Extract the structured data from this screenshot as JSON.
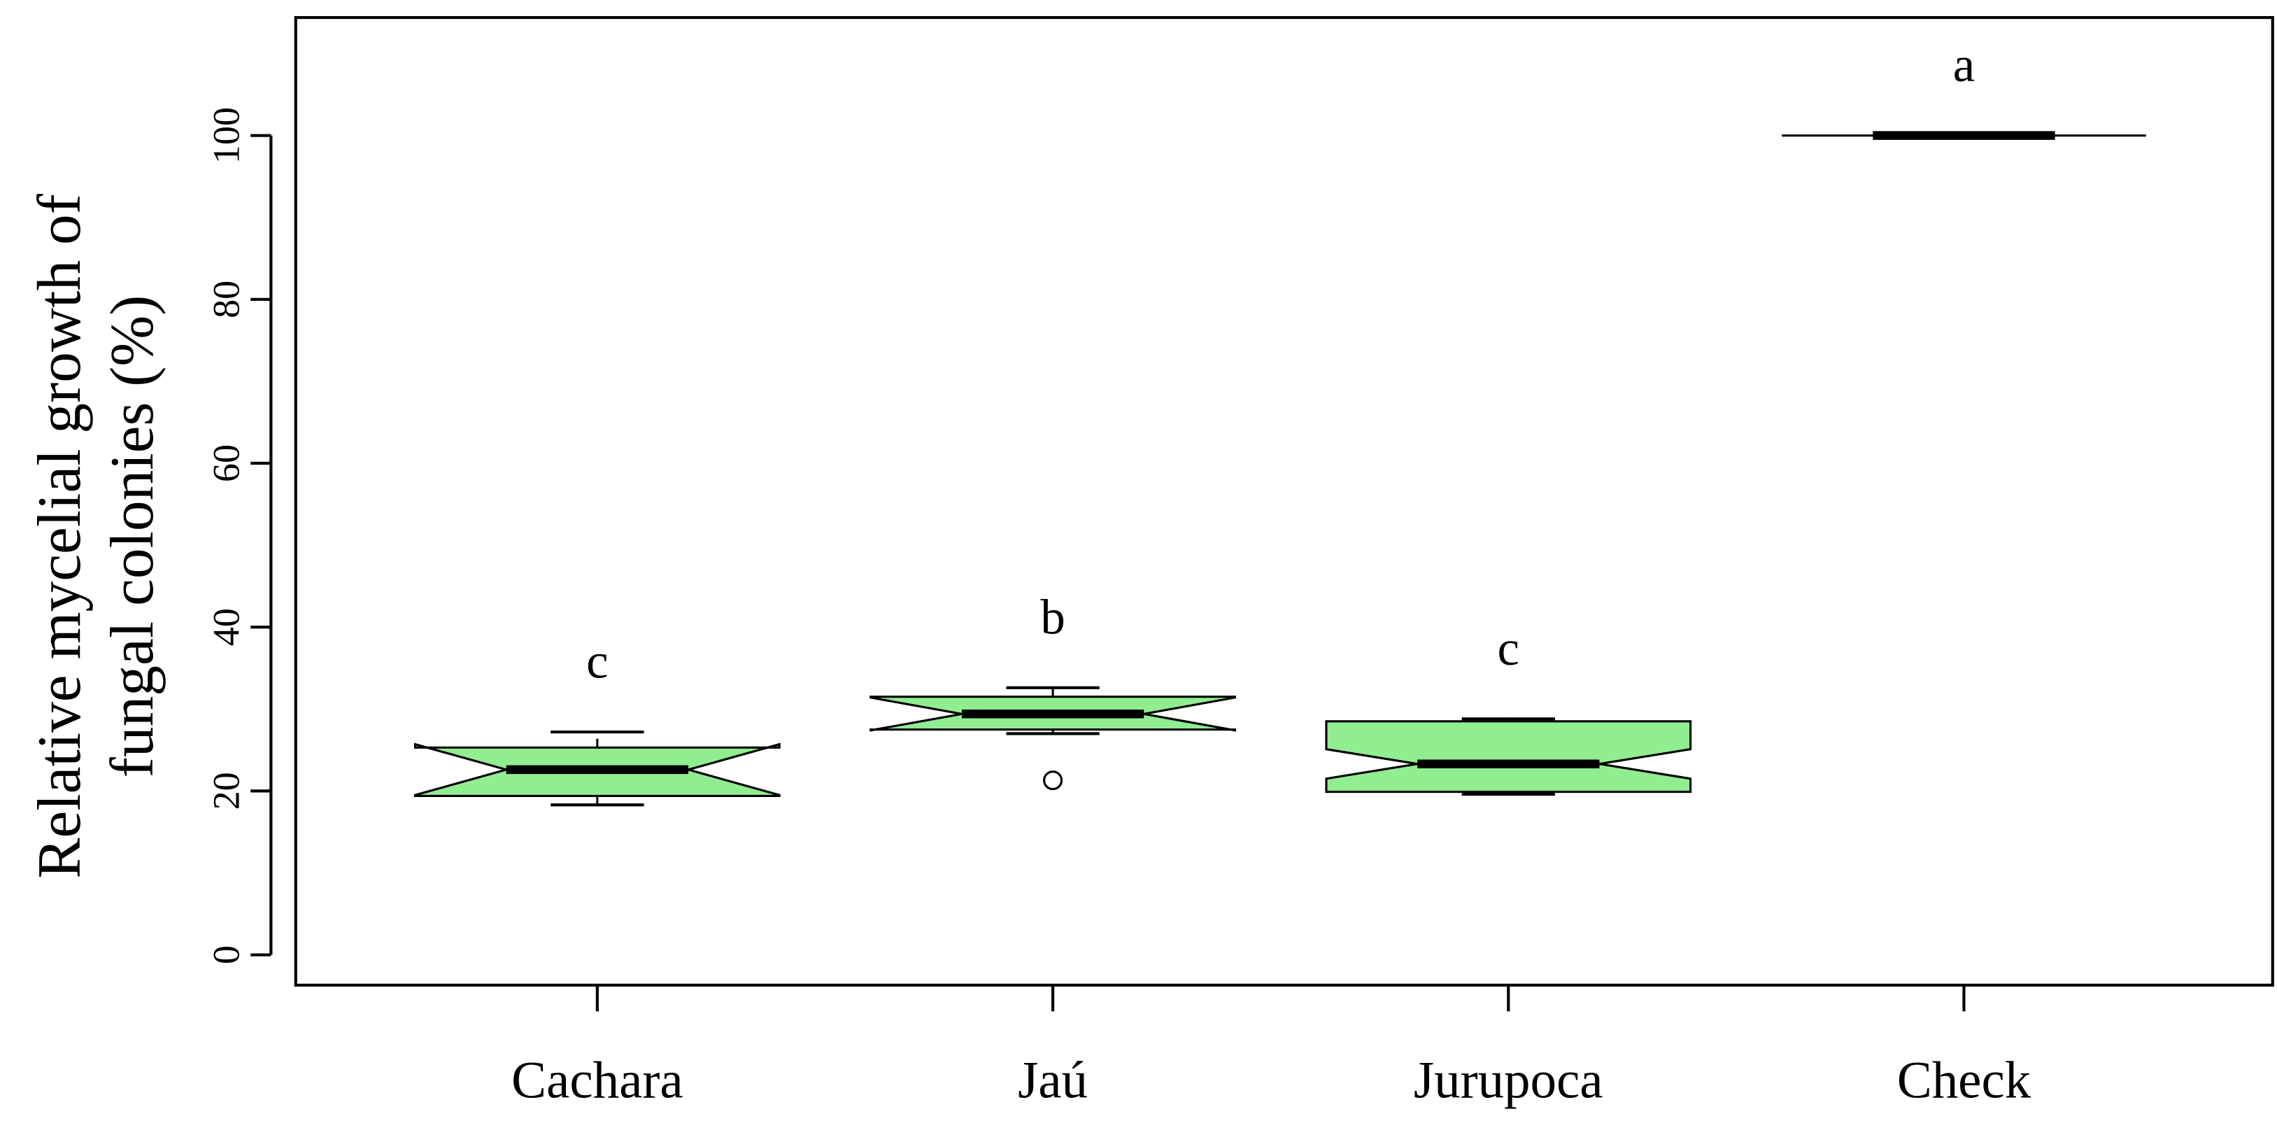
{
  "chart_data": {
    "type": "boxplot",
    "y_label": [
      "Relative mycelial growth of",
      "fungal colonies (%)"
    ],
    "categories": [
      "Cachara",
      "Jaú",
      "Jurupoca",
      "Check"
    ],
    "color": "#90ee90",
    "notched": true,
    "boxes": [
      {
        "whisker_low": 18.3,
        "q1": 19.4,
        "median": 22.6,
        "q3": 25.3,
        "whisker_high": 27.2,
        "notch": [
          19.5,
          25.7
        ],
        "outliers": []
      },
      {
        "whisker_low": 27.0,
        "q1": 27.5,
        "median": 29.4,
        "q3": 31.5,
        "whisker_high": 32.6,
        "notch": [
          27.4,
          31.4
        ],
        "outliers": [
          21.3
        ]
      },
      {
        "whisker_low": 19.6,
        "q1": 19.9,
        "median": 23.3,
        "q3": 28.5,
        "whisker_high": 28.8,
        "notch": [
          21.5,
          25.1
        ],
        "outliers": []
      },
      {
        "whisker_low": 100,
        "q1": 100,
        "median": 100,
        "q3": 100,
        "whisker_high": 100,
        "notch": [
          100,
          100
        ],
        "outliers": []
      }
    ],
    "annotations": [
      "c",
      "b",
      "c",
      "a"
    ],
    "ylim": [
      -3.7,
      114.4
    ],
    "yticks": [
      0,
      20,
      40,
      60,
      80,
      100
    ]
  }
}
